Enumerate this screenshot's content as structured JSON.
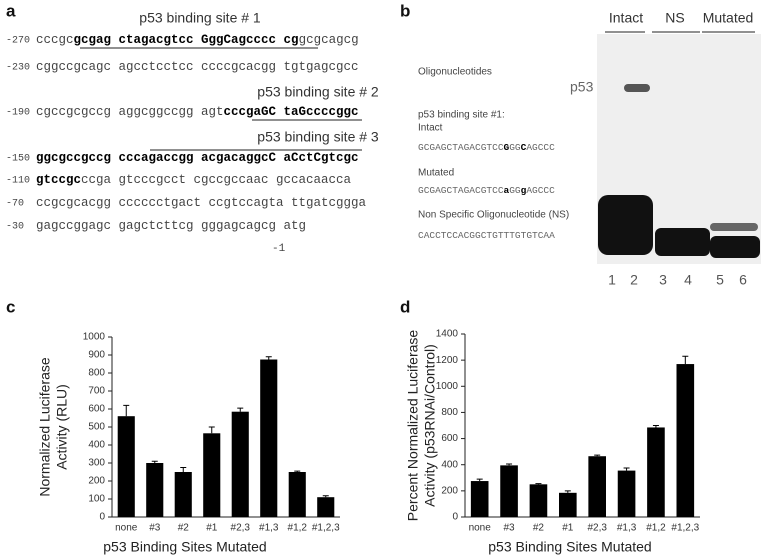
{
  "panel_a": {
    "letter": "a",
    "sites": [
      "p53 binding site # 1",
      "p53 binding site # 2",
      "p53 binding site # 3"
    ],
    "lines": [
      {
        "num": "-270",
        "segments": [
          {
            "text": "cccgc",
            "bold": false
          },
          {
            "text": "gcgag ctagacgtcc GggCagcccc cg",
            "bold": true
          },
          {
            "text": "gcgcagcg",
            "bold": false
          }
        ]
      },
      {
        "num": "-230",
        "segments": [
          {
            "text": "cggccgcagc agcctcctcc ccccgcacgg tgtgagcgcc",
            "bold": false
          }
        ]
      },
      {
        "num": "-190",
        "segments": [
          {
            "text": "cgccgcgccg aggcggccgg agt",
            "bold": false
          },
          {
            "text": "cccgaGC taGccccggc",
            "bold": true
          }
        ]
      },
      {
        "num": "-150",
        "segments": [
          {
            "text": "ggcgccgccg cccagaccgg acgacaggcC aCctCgtcgc",
            "bold": true
          }
        ]
      },
      {
        "num": "-110",
        "segments": [
          {
            "text": "gtccgc",
            "bold": true
          },
          {
            "text": "ccga gtcccgcct cgccgccaac gccacaacca",
            "bold": false
          }
        ]
      },
      {
        "num": "-70",
        "segments": [
          {
            "text": "ccgcgcacgg cccccctgact ccgtccagta ttgatcggga",
            "bold": false
          }
        ]
      },
      {
        "num": "-30",
        "segments": [
          {
            "text": "gagccggagc gagctcttcg gggagcagcg atg",
            "bold": false
          }
        ]
      }
    ],
    "end_label": "-1"
  },
  "panel_b": {
    "letter": "b",
    "groups": [
      "Intact",
      "NS",
      "Mutated"
    ],
    "oligo_title": "Oligonucleotides",
    "shift_label": "p53",
    "site_label": "p53 binding site #1:",
    "intact_label": "Intact",
    "intact_seq": [
      {
        "text": "GCGAGCTAGACGTCC",
        "bold": false
      },
      {
        "text": "G",
        "bold": true
      },
      {
        "text": "GG",
        "bold": false
      },
      {
        "text": "C",
        "bold": true
      },
      {
        "text": "AGCCC",
        "bold": false
      }
    ],
    "mutated_label": "Mutated",
    "mutated_seq": [
      {
        "text": "GCGAGCTAGACGTCC",
        "bold": false
      },
      {
        "text": "a",
        "bold": true
      },
      {
        "text": "GG",
        "bold": false
      },
      {
        "text": "g",
        "bold": true
      },
      {
        "text": "AGCCC",
        "bold": false
      }
    ],
    "ns_label": "Non Specific Oligonucleotide (NS)",
    "ns_seq": [
      {
        "text": "CACCTCCACGGCTGTTTGTGTCAA",
        "bold": false
      }
    ],
    "lanes": [
      "1",
      "2",
      "3",
      "4",
      "5",
      "6"
    ]
  },
  "chart_data": [
    {
      "type": "bar",
      "letter": "c",
      "y_label": [
        "Normalized Luciferase",
        "Activity (RLU)"
      ],
      "x_label": "p53 Binding Sites Mutated",
      "categories": [
        "none",
        "#3",
        "#2",
        "#1",
        "#2,3",
        "#1,3",
        "#1,2",
        "#1,2,3"
      ],
      "values": [
        560,
        300,
        250,
        465,
        585,
        875,
        250,
        110
      ],
      "errors": [
        60,
        10,
        25,
        35,
        20,
        15,
        5,
        8
      ],
      "color": "#000000",
      "ylim": [
        0,
        1000
      ],
      "yticks": [
        0,
        100,
        200,
        300,
        400,
        500,
        600,
        700,
        800,
        900,
        1000
      ]
    },
    {
      "type": "bar",
      "letter": "d",
      "y_label": [
        "Percent Normalized Luciferase",
        "Activity (p53RNAi/Control)"
      ],
      "x_label": "p53 Binding Sites Mutated",
      "categories": [
        "none",
        "#3",
        "#2",
        "#1",
        "#2,3",
        "#1,3",
        "#1,2",
        "#1,2,3"
      ],
      "values": [
        275,
        395,
        250,
        185,
        465,
        355,
        685,
        1170
      ],
      "errors": [
        15,
        10,
        5,
        15,
        8,
        20,
        15,
        60
      ],
      "color": "#000000",
      "ylim": [
        0,
        1400
      ],
      "yticks": [
        0,
        200,
        400,
        600,
        800,
        1000,
        1200,
        1400
      ]
    }
  ]
}
